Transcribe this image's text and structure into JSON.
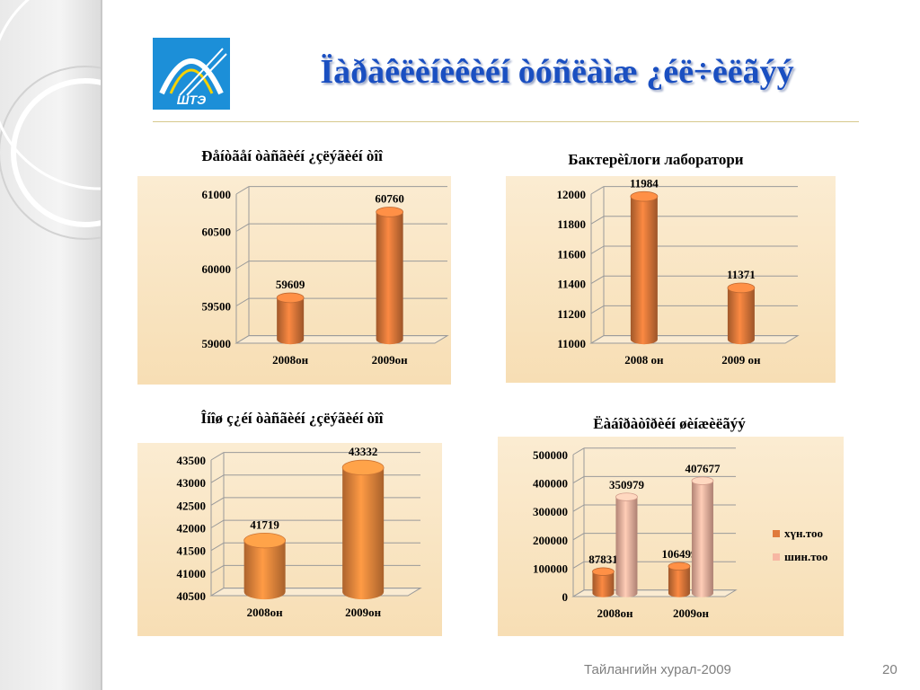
{
  "slide": {
    "title": "Ïàðàêëèíèêèéí òóñëàìæ ¿éë÷èëãýý",
    "logo_text": "ШТЭ",
    "footer_left": "Тайлангийн хурал-2009",
    "page_number": "20"
  },
  "chart_data": [
    {
      "type": "bar",
      "title": "Ðåíòãåí òàñãèéí ¿çëýãèéí òîî",
      "categories": [
        "2008он",
        "2009он"
      ],
      "values": [
        59609,
        60760
      ],
      "ylim": [
        59000,
        61000
      ],
      "yticks": [
        59000,
        59500,
        60000,
        60500,
        61000
      ],
      "color": "#e07a3b"
    },
    {
      "type": "bar",
      "title": "Бактерèîлоги лаборатори",
      "categories": [
        "2008 он",
        "2009 он"
      ],
      "values": [
        11984,
        11371
      ],
      "ylim": [
        11000,
        12000
      ],
      "yticks": [
        11000,
        11200,
        11400,
        11600,
        11800,
        12000
      ],
      "color": "#e07a3b"
    },
    {
      "type": "bar",
      "title": "Îíîø ç¿éí òàñãèéí ¿çëýãèéí òîî",
      "categories": [
        "2008он",
        "2009он"
      ],
      "values": [
        41719,
        43332
      ],
      "ylim": [
        40500,
        43500
      ],
      "yticks": [
        40500,
        41000,
        41500,
        42000,
        42500,
        43000,
        43500
      ],
      "color": "#f08a3e"
    },
    {
      "type": "bar",
      "title": "Ëàáîðàòîðèéí øèíæèëãýý",
      "categories": [
        "2008он",
        "2009он"
      ],
      "series": [
        {
          "name": "хүн.тоо",
          "values": [
            87831,
            106499
          ],
          "color": "#e07a3b"
        },
        {
          "name": "шин.тоо",
          "values": [
            350979,
            407677
          ],
          "color": "#f7b7a3"
        }
      ],
      "ylim": [
        0,
        500000
      ],
      "yticks": [
        0,
        100000,
        200000,
        300000,
        400000,
        500000
      ],
      "legend": "right"
    }
  ]
}
